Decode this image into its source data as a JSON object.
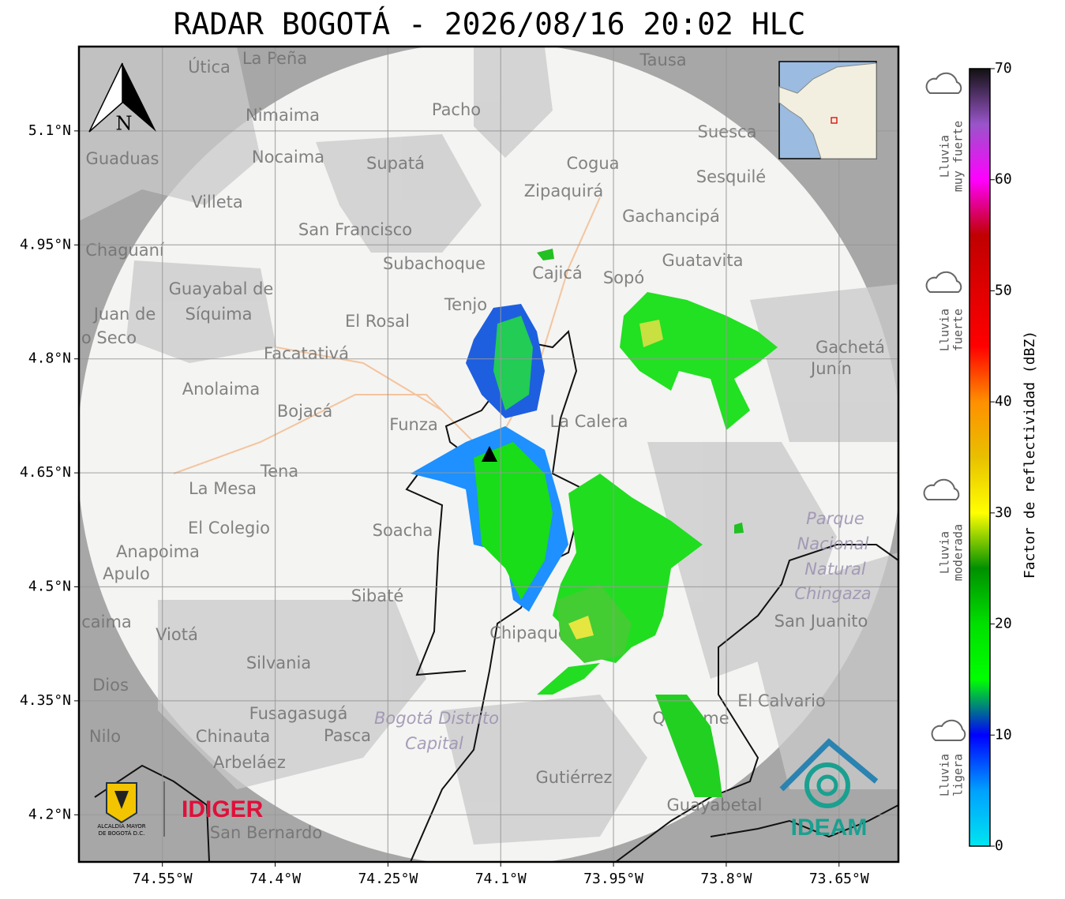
{
  "title": "RADAR BOGOTÁ - 2026/08/16 20:02 HLC",
  "map": {
    "xlim": [
      -74.661,
      -73.571
    ],
    "ylim": [
      4.138,
      5.211
    ],
    "grid": true,
    "xticks": [
      {
        "value": -74.55,
        "label": "74.55°W"
      },
      {
        "value": -74.4,
        "label": "74.4°W"
      },
      {
        "value": -74.25,
        "label": "74.25°W"
      },
      {
        "value": -74.1,
        "label": "74.1°W"
      },
      {
        "value": -73.95,
        "label": "73.95°W"
      },
      {
        "value": -73.8,
        "label": "73.8°W"
      },
      {
        "value": -73.65,
        "label": "73.65°W"
      }
    ],
    "yticks": [
      {
        "value": 5.1,
        "label": "5.1°N"
      },
      {
        "value": 4.95,
        "label": "4.95°N"
      },
      {
        "value": 4.8,
        "label": "4.8°N"
      },
      {
        "value": 4.65,
        "label": "4.65°N"
      },
      {
        "value": 4.5,
        "label": "4.5°N"
      },
      {
        "value": 4.35,
        "label": "4.35°N"
      },
      {
        "value": 4.2,
        "label": "4.2°N"
      }
    ],
    "north_label": "N",
    "places": [
      "La Peña",
      "Útica",
      "Tausa",
      "Pacho",
      "Nimaima",
      "Guaduas",
      "Nocaima",
      "Supatá",
      "Cogua",
      "Suesca",
      "Sesquilé",
      "Zipaquirá",
      "Villeta",
      "Gachancipá",
      "San Francisco",
      "Chaguaní",
      "Guatavita",
      "Subachoque",
      "Cajicá",
      "Sopó",
      "Guayabal de",
      "Síquima",
      "Tenjo",
      "El Rosal",
      "Juan de",
      "o Seco",
      "Facatativá",
      "Gachetá",
      "Junín",
      "Anolaima",
      "Bojacá",
      "Funza",
      "La Calera",
      "Tena",
      "La Mesa",
      "Parque",
      "Nacional",
      "Natural",
      "Chingaza",
      "Soacha",
      "El Colegio",
      "Anapoima",
      "Apulo",
      "Sibaté",
      "San Juanito",
      "caima",
      "Viotá",
      "Chipaque",
      "Silvania",
      "Dios",
      "El Calvario",
      "Fusagasugá",
      "Bogotá Distrito",
      "Capital",
      "Quetame",
      "Nilo",
      "Chinauta",
      "Pasca",
      "Arbeláez",
      "Gutiérrez",
      "Guayabetal",
      "San Bernardo"
    ]
  },
  "colorbar": {
    "label": "Factor de reflectividad (dBZ)",
    "lim": [
      0,
      70
    ],
    "ticks": [
      0,
      10,
      20,
      30,
      40,
      50,
      60,
      70
    ],
    "colors": [
      "#00e5f0",
      "#00a0ff",
      "#0000ff",
      "#00ff00",
      "#00e000",
      "#009000",
      "#ffff00",
      "#e8c000",
      "#ff9000",
      "#ff0000",
      "#e00000",
      "#c00000",
      "#ff00ff",
      "#9955c9",
      "#111111"
    ]
  },
  "legend": [
    {
      "lines": [
        "Lluvia",
        "muy fuerte"
      ]
    },
    {
      "lines": [
        "Lluvia",
        "fuerte"
      ]
    },
    {
      "lines": [
        "Lluvia",
        "moderada"
      ]
    },
    {
      "lines": [
        "Lluvia",
        "ligera"
      ]
    }
  ],
  "logos": {
    "alcaldia": [
      "ALCALDÍA MAYOR",
      "DE BOGOTÁ D.C."
    ],
    "idiger": "IDIGER",
    "ideam": "IDEAM"
  }
}
